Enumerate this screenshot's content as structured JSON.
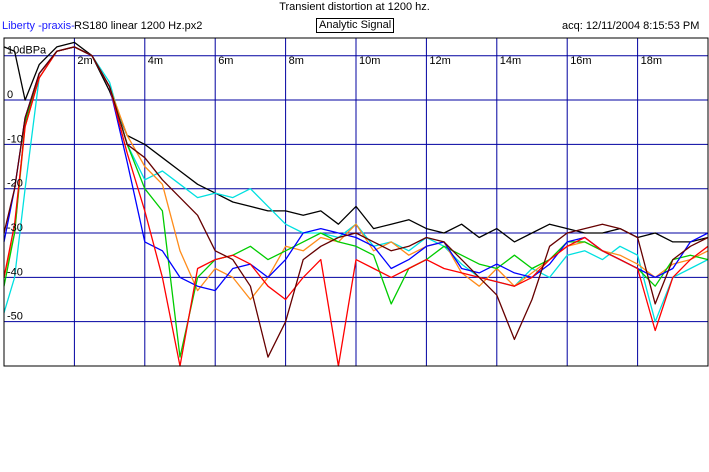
{
  "header": {
    "title": "Transient distortion at 1200 hz.",
    "brand": "Liberty -praxis-",
    "filename": "RS180 linear 1200 Hz.px2",
    "signal_mode": "Analytic Signal",
    "acquired": "acq: 12/11/2004 8:15:53 PM"
  },
  "colors": {
    "grid": "#0000a0",
    "frame": "#000000",
    "series": [
      "#000000",
      "#00e0e0",
      "#ff8c1a",
      "#00cc00",
      "#0000ff",
      "#ff0000",
      "#660000",
      "#4a3aa0"
    ]
  },
  "chart_data": {
    "type": "line",
    "title": "Transient distortion at 1200 hz.",
    "xlabel": "",
    "ylabel": "",
    "x_unit": "ms",
    "xlim": [
      0.0,
      20.0
    ],
    "ylim": [
      -60,
      14
    ],
    "grid": true,
    "x_tick_labels": [
      "2m",
      "4m",
      "6m",
      "8m",
      "10m",
      "12m",
      "14m",
      "16m",
      "18m"
    ],
    "x_ticks": [
      2,
      4,
      6,
      8,
      10,
      12,
      14,
      16,
      18
    ],
    "y_tick_labels": [
      "10dBPa",
      "0",
      "-10",
      "-20",
      "-30",
      "-40",
      "-50"
    ],
    "y_ticks": [
      10,
      0,
      -10,
      -20,
      -30,
      -40,
      -50
    ],
    "series": [
      {
        "color": "#000000",
        "x": [
          0,
          0.3,
          0.6,
          1,
          1.5,
          2,
          2.5,
          3,
          3.5,
          4,
          4.5,
          5,
          5.5,
          6,
          6.5,
          7,
          7.5,
          8,
          8.5,
          9,
          9.5,
          10,
          10.5,
          11,
          11.5,
          12,
          12.5,
          13,
          13.5,
          14,
          14.5,
          15,
          15.5,
          16,
          16.5,
          17,
          17.5,
          18,
          18.5,
          19,
          19.5,
          20
        ],
        "y": [
          12,
          11,
          0,
          8,
          12,
          13,
          10,
          2,
          -8,
          -10,
          -13,
          -16,
          -19,
          -21,
          -23,
          -24,
          -25,
          -25,
          -26,
          -25,
          -28,
          -24,
          -29,
          -28,
          -27,
          -29,
          -30,
          -28,
          -31,
          -29,
          -32,
          -30,
          -28,
          -29,
          -30,
          -30,
          -29,
          -31,
          -30,
          -32,
          -32,
          -31
        ]
      },
      {
        "color": "#00e0e0",
        "x": [
          0,
          0.3,
          0.6,
          1,
          1.5,
          2,
          2.5,
          3,
          3.5,
          4,
          4.5,
          5,
          5.5,
          6,
          6.5,
          7,
          7.5,
          8,
          8.5,
          9,
          9.5,
          10,
          10.5,
          11,
          11.5,
          12,
          12.5,
          13,
          13.5,
          14,
          14.5,
          15,
          15.5,
          16,
          16.5,
          17,
          17.5,
          18,
          18.5,
          19,
          19.5,
          20
        ],
        "y": [
          -48,
          -40,
          -20,
          5,
          11,
          12,
          10,
          4,
          -10,
          -18,
          -16,
          -19,
          -22,
          -21,
          -22,
          -20,
          -24,
          -28,
          -30,
          -30,
          -31,
          -28,
          -33,
          -32,
          -34,
          -31,
          -33,
          -37,
          -40,
          -41,
          -42,
          -38,
          -40,
          -35,
          -34,
          -36,
          -33,
          -35,
          -50,
          -40,
          -38,
          -36
        ]
      },
      {
        "color": "#ff8c1a",
        "x": [
          0,
          0.3,
          0.6,
          1,
          1.5,
          2,
          2.5,
          3,
          3.5,
          4,
          4.5,
          5,
          5.5,
          6,
          6.5,
          7,
          7.5,
          8,
          8.5,
          9,
          9.5,
          10,
          10.5,
          11,
          11.5,
          12,
          12.5,
          13,
          13.5,
          14,
          14.5,
          15,
          15.5,
          16,
          16.5,
          17,
          17.5,
          18,
          18.5,
          19,
          19.5,
          20
        ],
        "y": [
          -40,
          -30,
          -6,
          5,
          11,
          12,
          10,
          3,
          -8,
          -15,
          -19,
          -34,
          -43,
          -38,
          -40,
          -45,
          -40,
          -33,
          -34,
          -31,
          -32,
          -28,
          -34,
          -32,
          -35,
          -33,
          -32,
          -39,
          -42,
          -38,
          -42,
          -39,
          -36,
          -33,
          -32,
          -34,
          -35,
          -37,
          -40,
          -37,
          -36,
          -34
        ]
      },
      {
        "color": "#00cc00",
        "x": [
          0,
          0.3,
          0.6,
          1,
          1.5,
          2,
          2.5,
          3,
          3.5,
          4,
          4.5,
          5,
          5.5,
          6,
          6.5,
          7,
          7.5,
          8,
          8.5,
          9,
          9.5,
          10,
          10.5,
          11,
          11.5,
          12,
          12.5,
          13,
          13.5,
          14,
          14.5,
          15,
          15.5,
          16,
          16.5,
          17,
          17.5,
          18,
          18.5,
          19,
          19.5,
          20
        ],
        "y": [
          -42,
          -30,
          -5,
          6,
          11,
          12,
          10,
          3,
          -10,
          -20,
          -25,
          -58,
          -40,
          -36,
          -35,
          -33,
          -36,
          -34,
          -32,
          -30,
          -32,
          -33,
          -35,
          -46,
          -38,
          -36,
          -33,
          -35,
          -37,
          -38,
          -35,
          -38,
          -36,
          -32,
          -32,
          -34,
          -36,
          -38,
          -42,
          -36,
          -35,
          -36
        ]
      },
      {
        "color": "#0000ff",
        "x": [
          0,
          0.3,
          0.6,
          1,
          1.5,
          2,
          2.5,
          3,
          3.5,
          4,
          4.5,
          5,
          5.5,
          6,
          6.5,
          7,
          7.5,
          8,
          8.5,
          9,
          9.5,
          10,
          10.5,
          11,
          11.5,
          12,
          12.5,
          13,
          13.5,
          14,
          14.5,
          15,
          15.5,
          16,
          16.5,
          17,
          17.5,
          18,
          18.5,
          19,
          19.5,
          20
        ],
        "y": [
          -32,
          -20,
          -4,
          6,
          11,
          12,
          10,
          3,
          -14,
          -32,
          -34,
          -40,
          -42,
          -43,
          -38,
          -37,
          -40,
          -36,
          -30,
          -29,
          -30,
          -31,
          -33,
          -38,
          -36,
          -33,
          -32,
          -38,
          -39,
          -37,
          -39,
          -40,
          -37,
          -32,
          -31,
          -34,
          -36,
          -38,
          -40,
          -38,
          -32,
          -30
        ]
      },
      {
        "color": "#ff0000",
        "x": [
          0,
          0.3,
          0.6,
          1,
          1.5,
          2,
          2.5,
          3,
          3.5,
          4,
          4.5,
          5,
          5.5,
          6,
          6.5,
          7,
          7.5,
          8,
          8.5,
          9,
          9.5,
          10,
          10.5,
          11,
          11.5,
          12,
          12.5,
          13,
          13.5,
          14,
          14.5,
          15,
          15.5,
          16,
          16.5,
          17,
          17.5,
          18,
          18.5,
          19,
          19.5,
          20
        ],
        "y": [
          -40,
          -28,
          -6,
          5,
          11,
          12,
          10,
          3,
          -12,
          -25,
          -40,
          -60,
          -38,
          -36,
          -35,
          -37,
          -42,
          -45,
          -40,
          -36,
          -60,
          -36,
          -38,
          -40,
          -38,
          -36,
          -38,
          -39,
          -40,
          -41,
          -42,
          -40,
          -36,
          -33,
          -31,
          -34,
          -36,
          -38,
          -52,
          -40,
          -36,
          -33
        ]
      },
      {
        "color": "#660000",
        "x": [
          0,
          0.3,
          0.6,
          1,
          1.5,
          2,
          2.5,
          3,
          3.5,
          4,
          4.5,
          5,
          5.5,
          6,
          6.5,
          7,
          7.5,
          8,
          8.5,
          9,
          9.5,
          10,
          10.5,
          11,
          11.5,
          12,
          12.5,
          13,
          13.5,
          14,
          14.5,
          15,
          15.5,
          16,
          16.5,
          17,
          17.5,
          18,
          18.5,
          19,
          19.5,
          20
        ],
        "y": [
          -30,
          -20,
          -4,
          6,
          11,
          12,
          10,
          3,
          -10,
          -13,
          -18,
          -22,
          -26,
          -34,
          -36,
          -42,
          -58,
          -50,
          -36,
          -33,
          -31,
          -30,
          -32,
          -34,
          -33,
          -31,
          -32,
          -36,
          -40,
          -44,
          -54,
          -45,
          -33,
          -30,
          -29,
          -28,
          -29,
          -31,
          -46,
          -36,
          -33,
          -31
        ]
      }
    ]
  }
}
